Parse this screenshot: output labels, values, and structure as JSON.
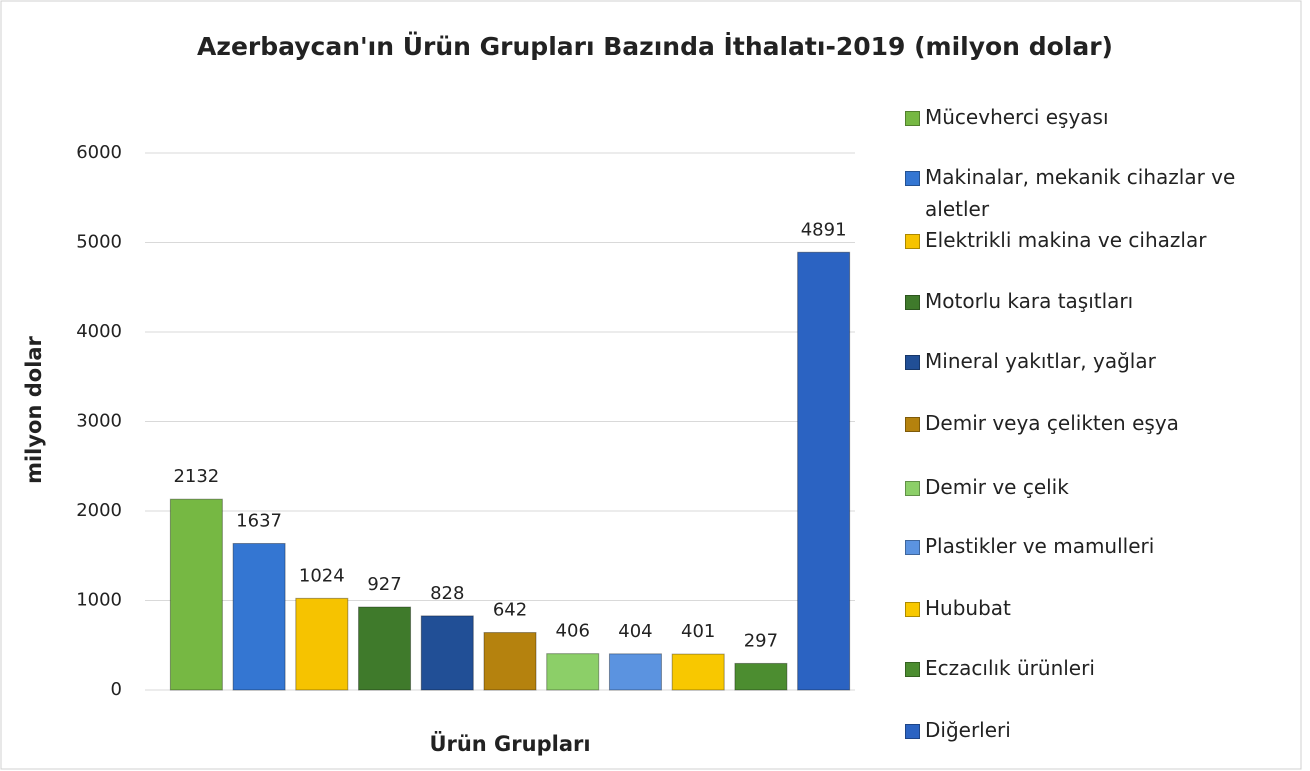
{
  "chart_data": {
    "type": "bar",
    "title": "Azerbaycan'ın Ürün Grupları Bazında İthalatı-2019 (milyon dolar)",
    "x_label": "Ürün Grupları",
    "y_label": "milyon dolar",
    "series": [
      {
        "name": "Mücevherci eşyası",
        "color": "#76b843",
        "values": [
          2132
        ]
      },
      {
        "name": "Makinalar, mekanik cihazlar ve aletler",
        "color": "#3476d2",
        "values": [
          1637
        ]
      },
      {
        "name": "Elektrikli makina ve cihazlar",
        "color": "#f6c300",
        "values": [
          1024
        ]
      },
      {
        "name": "Motorlu kara taşıtları",
        "color": "#3f7a2b",
        "values": [
          927
        ]
      },
      {
        "name": "Mineral yakıtlar, yağlar",
        "color": "#214f96",
        "values": [
          828
        ]
      },
      {
        "name": "Demir veya çelikten eşya",
        "color": "#b5820e",
        "values": [
          642
        ]
      },
      {
        "name": "Demir ve çelik",
        "color": "#8ccf68",
        "values": [
          406
        ]
      },
      {
        "name": "Plastikler ve mamulleri",
        "color": "#5b93e0",
        "values": [
          404
        ]
      },
      {
        "name": "Hububat",
        "color": "#f8c800",
        "values": [
          401
        ]
      },
      {
        "name": "Eczacılık ürünleri",
        "color": "#4c8d30",
        "values": [
          297
        ]
      },
      {
        "name": "Diğerleri",
        "color": "#2b63c2",
        "values": [
          4891
        ]
      }
    ],
    "ylim": [
      0,
      6000
    ],
    "yticks": [
      0,
      1000,
      2000,
      3000,
      4000,
      5000,
      6000
    ],
    "grid": true,
    "legend": "right"
  }
}
